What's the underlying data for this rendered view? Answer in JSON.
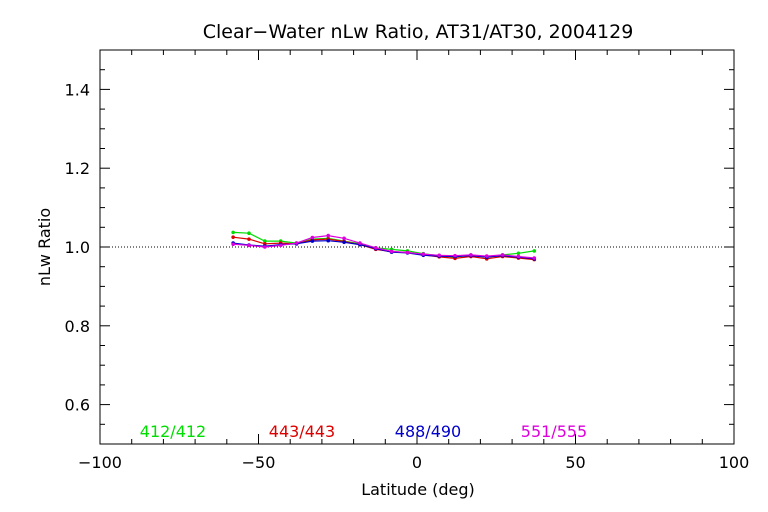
{
  "chart_data": {
    "type": "line",
    "title": "Clear−Water nLw Ratio, AT31/AT30, 2004129",
    "xlabel": "Latitude (deg)",
    "ylabel": "nLw Ratio",
    "xlim": [
      -100,
      100
    ],
    "ylim": [
      0.5,
      1.5
    ],
    "x_ticks": [
      -100,
      -50,
      0,
      50,
      100
    ],
    "x_tick_labels": [
      "−100",
      "−50",
      "0",
      "50",
      "100"
    ],
    "y_ticks": [
      0.6,
      0.8,
      1.0,
      1.2,
      1.4
    ],
    "y_tick_labels": [
      "0.6",
      "0.8",
      "1.0",
      "1.2",
      "1.4"
    ],
    "reference_line": 1.0,
    "grid": false,
    "x": [
      -58,
      -53,
      -48,
      -43,
      -38,
      -33,
      -28,
      -23,
      -18,
      -13,
      -8,
      -3,
      2,
      7,
      12,
      17,
      22,
      27,
      32,
      37
    ],
    "series": [
      {
        "name": "412/412",
        "color": "#00dd00",
        "values": [
          1.037,
          1.035,
          1.015,
          1.015,
          1.01,
          1.02,
          1.022,
          1.015,
          1.008,
          0.998,
          0.994,
          0.99,
          0.983,
          0.978,
          0.974,
          0.98,
          0.974,
          0.98,
          0.984,
          0.99
        ]
      },
      {
        "name": "443/443",
        "color": "#dd0000",
        "values": [
          1.025,
          1.02,
          1.008,
          1.01,
          1.008,
          1.018,
          1.02,
          1.014,
          1.006,
          0.994,
          0.988,
          0.986,
          0.98,
          0.975,
          0.971,
          0.976,
          0.97,
          0.976,
          0.972,
          0.968
        ]
      },
      {
        "name": "488/490",
        "color": "#0000cc",
        "values": [
          1.01,
          1.005,
          1.002,
          1.006,
          1.008,
          1.015,
          1.016,
          1.012,
          1.006,
          0.996,
          0.987,
          0.985,
          0.979,
          0.977,
          0.976,
          0.978,
          0.974,
          0.978,
          0.974,
          0.97
        ]
      },
      {
        "name": "551/555",
        "color": "#dd00dd",
        "values": [
          1.007,
          1.004,
          1.0,
          1.004,
          1.01,
          1.024,
          1.029,
          1.022,
          1.01,
          0.998,
          0.989,
          0.986,
          0.982,
          0.979,
          0.978,
          0.98,
          0.977,
          0.98,
          0.976,
          0.972
        ]
      }
    ]
  }
}
